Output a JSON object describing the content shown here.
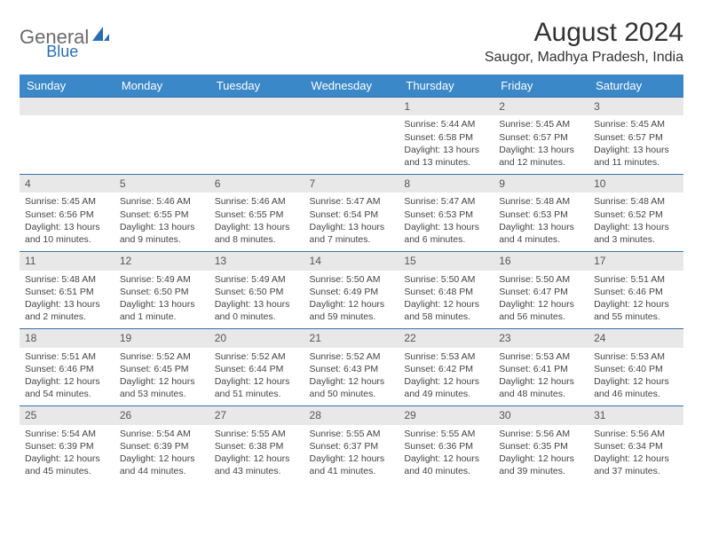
{
  "brand": {
    "name_part1": "General",
    "name_part2": "Blue"
  },
  "title": "August 2024",
  "location": "Saugor, Madhya Pradesh, India",
  "colors": {
    "header_bg": "#3b88c8",
    "header_text": "#ffffff",
    "row_border": "#3b6fa8",
    "daynum_bg": "#e8e8e8",
    "logo_gray": "#6b6b6b",
    "logo_blue": "#2a6db3"
  },
  "weekdays": [
    "Sunday",
    "Monday",
    "Tuesday",
    "Wednesday",
    "Thursday",
    "Friday",
    "Saturday"
  ],
  "first_weekday_index": 4,
  "days": [
    {
      "n": 1,
      "sunrise": "5:44 AM",
      "sunset": "6:58 PM",
      "daylight": "13 hours and 13 minutes."
    },
    {
      "n": 2,
      "sunrise": "5:45 AM",
      "sunset": "6:57 PM",
      "daylight": "13 hours and 12 minutes."
    },
    {
      "n": 3,
      "sunrise": "5:45 AM",
      "sunset": "6:57 PM",
      "daylight": "13 hours and 11 minutes."
    },
    {
      "n": 4,
      "sunrise": "5:45 AM",
      "sunset": "6:56 PM",
      "daylight": "13 hours and 10 minutes."
    },
    {
      "n": 5,
      "sunrise": "5:46 AM",
      "sunset": "6:55 PM",
      "daylight": "13 hours and 9 minutes."
    },
    {
      "n": 6,
      "sunrise": "5:46 AM",
      "sunset": "6:55 PM",
      "daylight": "13 hours and 8 minutes."
    },
    {
      "n": 7,
      "sunrise": "5:47 AM",
      "sunset": "6:54 PM",
      "daylight": "13 hours and 7 minutes."
    },
    {
      "n": 8,
      "sunrise": "5:47 AM",
      "sunset": "6:53 PM",
      "daylight": "13 hours and 6 minutes."
    },
    {
      "n": 9,
      "sunrise": "5:48 AM",
      "sunset": "6:53 PM",
      "daylight": "13 hours and 4 minutes."
    },
    {
      "n": 10,
      "sunrise": "5:48 AM",
      "sunset": "6:52 PM",
      "daylight": "13 hours and 3 minutes."
    },
    {
      "n": 11,
      "sunrise": "5:48 AM",
      "sunset": "6:51 PM",
      "daylight": "13 hours and 2 minutes."
    },
    {
      "n": 12,
      "sunrise": "5:49 AM",
      "sunset": "6:50 PM",
      "daylight": "13 hours and 1 minute."
    },
    {
      "n": 13,
      "sunrise": "5:49 AM",
      "sunset": "6:50 PM",
      "daylight": "13 hours and 0 minutes."
    },
    {
      "n": 14,
      "sunrise": "5:50 AM",
      "sunset": "6:49 PM",
      "daylight": "12 hours and 59 minutes."
    },
    {
      "n": 15,
      "sunrise": "5:50 AM",
      "sunset": "6:48 PM",
      "daylight": "12 hours and 58 minutes."
    },
    {
      "n": 16,
      "sunrise": "5:50 AM",
      "sunset": "6:47 PM",
      "daylight": "12 hours and 56 minutes."
    },
    {
      "n": 17,
      "sunrise": "5:51 AM",
      "sunset": "6:46 PM",
      "daylight": "12 hours and 55 minutes."
    },
    {
      "n": 18,
      "sunrise": "5:51 AM",
      "sunset": "6:46 PM",
      "daylight": "12 hours and 54 minutes."
    },
    {
      "n": 19,
      "sunrise": "5:52 AM",
      "sunset": "6:45 PM",
      "daylight": "12 hours and 53 minutes."
    },
    {
      "n": 20,
      "sunrise": "5:52 AM",
      "sunset": "6:44 PM",
      "daylight": "12 hours and 51 minutes."
    },
    {
      "n": 21,
      "sunrise": "5:52 AM",
      "sunset": "6:43 PM",
      "daylight": "12 hours and 50 minutes."
    },
    {
      "n": 22,
      "sunrise": "5:53 AM",
      "sunset": "6:42 PM",
      "daylight": "12 hours and 49 minutes."
    },
    {
      "n": 23,
      "sunrise": "5:53 AM",
      "sunset": "6:41 PM",
      "daylight": "12 hours and 48 minutes."
    },
    {
      "n": 24,
      "sunrise": "5:53 AM",
      "sunset": "6:40 PM",
      "daylight": "12 hours and 46 minutes."
    },
    {
      "n": 25,
      "sunrise": "5:54 AM",
      "sunset": "6:39 PM",
      "daylight": "12 hours and 45 minutes."
    },
    {
      "n": 26,
      "sunrise": "5:54 AM",
      "sunset": "6:39 PM",
      "daylight": "12 hours and 44 minutes."
    },
    {
      "n": 27,
      "sunrise": "5:55 AM",
      "sunset": "6:38 PM",
      "daylight": "12 hours and 43 minutes."
    },
    {
      "n": 28,
      "sunrise": "5:55 AM",
      "sunset": "6:37 PM",
      "daylight": "12 hours and 41 minutes."
    },
    {
      "n": 29,
      "sunrise": "5:55 AM",
      "sunset": "6:36 PM",
      "daylight": "12 hours and 40 minutes."
    },
    {
      "n": 30,
      "sunrise": "5:56 AM",
      "sunset": "6:35 PM",
      "daylight": "12 hours and 39 minutes."
    },
    {
      "n": 31,
      "sunrise": "5:56 AM",
      "sunset": "6:34 PM",
      "daylight": "12 hours and 37 minutes."
    }
  ],
  "labels": {
    "sunrise": "Sunrise:",
    "sunset": "Sunset:",
    "daylight": "Daylight:"
  }
}
